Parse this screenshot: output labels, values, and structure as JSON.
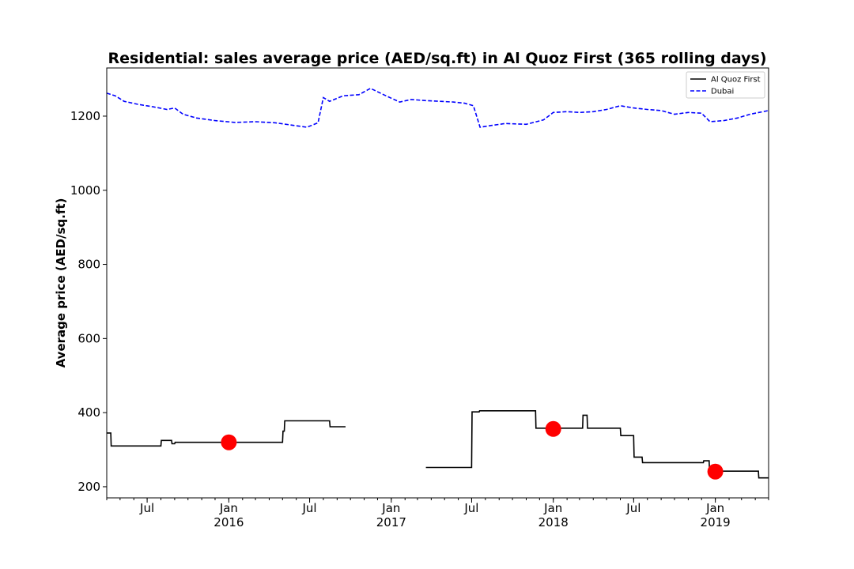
{
  "chart_data": {
    "type": "line",
    "title": "Residential: sales average price (AED/sq.ft) in Al Quoz First (365 rolling days)",
    "ylabel": "Average price (AED/sq.ft)",
    "xlabel": "",
    "xlim": [
      "2015-04-01",
      "2019-05-01"
    ],
    "ylim": [
      170,
      1330
    ],
    "yticks": [
      200,
      400,
      600,
      800,
      1000,
      1200
    ],
    "xticks": [
      {
        "date": "2015-07-01",
        "label": "Jul",
        "year": ""
      },
      {
        "date": "2016-01-01",
        "label": "Jan",
        "year": "2016"
      },
      {
        "date": "2016-07-01",
        "label": "Jul",
        "year": ""
      },
      {
        "date": "2017-01-01",
        "label": "Jan",
        "year": "2017"
      },
      {
        "date": "2017-07-01",
        "label": "Jul",
        "year": ""
      },
      {
        "date": "2018-01-01",
        "label": "Jan",
        "year": "2018"
      },
      {
        "date": "2018-07-01",
        "label": "Jul",
        "year": ""
      },
      {
        "date": "2019-01-01",
        "label": "Jan",
        "year": "2019"
      }
    ],
    "legend": {
      "placement": "top-right"
    },
    "grid": false,
    "series": [
      {
        "name": "Al Quoz First",
        "color": "#000000",
        "style": "solid",
        "segments": [
          [
            [
              "2015-04-01",
              345
            ],
            [
              "2015-04-10",
              345
            ],
            [
              "2015-04-11",
              310
            ],
            [
              "2015-08-01",
              310
            ],
            [
              "2015-08-02",
              325
            ],
            [
              "2015-08-25",
              325
            ],
            [
              "2015-08-26",
              316
            ],
            [
              "2015-09-01",
              316
            ],
            [
              "2015-09-02",
              320
            ],
            [
              "2016-05-01",
              320
            ],
            [
              "2016-05-02",
              350
            ],
            [
              "2016-05-05",
              350
            ],
            [
              "2016-05-06",
              378
            ],
            [
              "2016-08-15",
              378
            ],
            [
              "2016-08-16",
              362
            ],
            [
              "2016-09-20",
              362
            ]
          ],
          [
            [
              "2017-03-20",
              252
            ],
            [
              "2017-07-01",
              252
            ],
            [
              "2017-07-02",
              402
            ],
            [
              "2017-07-18",
              402
            ],
            [
              "2017-07-19",
              405
            ],
            [
              "2017-11-22",
              405
            ],
            [
              "2017-11-23",
              358
            ],
            [
              "2018-03-08",
              358
            ],
            [
              "2018-03-09",
              393
            ],
            [
              "2018-03-18",
              393
            ],
            [
              "2018-03-19",
              358
            ],
            [
              "2018-06-01",
              358
            ],
            [
              "2018-06-02",
              338
            ],
            [
              "2018-07-01",
              338
            ],
            [
              "2018-07-02",
              280
            ],
            [
              "2018-07-20",
              280
            ],
            [
              "2018-07-21",
              265
            ],
            [
              "2018-12-05",
              265
            ],
            [
              "2018-12-06",
              270
            ],
            [
              "2018-12-18",
              270
            ],
            [
              "2018-12-19",
              242
            ],
            [
              "2019-04-08",
              242
            ],
            [
              "2019-04-09",
              224
            ],
            [
              "2019-05-01",
              224
            ]
          ]
        ]
      },
      {
        "name": "Dubai",
        "color": "#0000ff",
        "style": "dashed",
        "segments": [
          [
            [
              "2015-04-01",
              1262
            ],
            [
              "2015-04-20",
              1255
            ],
            [
              "2015-05-10",
              1240
            ],
            [
              "2015-06-10",
              1232
            ],
            [
              "2015-07-15",
              1225
            ],
            [
              "2015-08-15",
              1218
            ],
            [
              "2015-09-01",
              1222
            ],
            [
              "2015-09-20",
              1205
            ],
            [
              "2015-10-20",
              1195
            ],
            [
              "2015-12-01",
              1188
            ],
            [
              "2016-01-15",
              1183
            ],
            [
              "2016-03-01",
              1185
            ],
            [
              "2016-04-15",
              1182
            ],
            [
              "2016-05-20",
              1176
            ],
            [
              "2016-06-25",
              1170
            ],
            [
              "2016-07-20",
              1182
            ],
            [
              "2016-08-01",
              1250
            ],
            [
              "2016-08-15",
              1240
            ],
            [
              "2016-09-15",
              1255
            ],
            [
              "2016-10-20",
              1258
            ],
            [
              "2016-11-15",
              1275
            ],
            [
              "2016-12-20",
              1255
            ],
            [
              "2017-01-20",
              1238
            ],
            [
              "2017-02-15",
              1245
            ],
            [
              "2017-03-20",
              1242
            ],
            [
              "2017-04-20",
              1240
            ],
            [
              "2017-05-20",
              1238
            ],
            [
              "2017-06-15",
              1235
            ],
            [
              "2017-07-05",
              1228
            ],
            [
              "2017-07-20",
              1170
            ],
            [
              "2017-08-15",
              1175
            ],
            [
              "2017-09-15",
              1180
            ],
            [
              "2017-11-01",
              1178
            ],
            [
              "2017-12-10",
              1190
            ],
            [
              "2018-01-01",
              1210
            ],
            [
              "2018-02-01",
              1212
            ],
            [
              "2018-03-01",
              1210
            ],
            [
              "2018-04-01",
              1212
            ],
            [
              "2018-05-01",
              1218
            ],
            [
              "2018-06-01",
              1228
            ],
            [
              "2018-07-01",
              1222
            ],
            [
              "2018-08-01",
              1218
            ],
            [
              "2018-09-01",
              1215
            ],
            [
              "2018-10-01",
              1205
            ],
            [
              "2018-11-01",
              1210
            ],
            [
              "2018-12-01",
              1208
            ],
            [
              "2018-12-20",
              1185
            ],
            [
              "2019-01-20",
              1188
            ],
            [
              "2019-02-20",
              1195
            ],
            [
              "2019-03-20",
              1205
            ],
            [
              "2019-05-01",
              1215
            ]
          ]
        ]
      }
    ],
    "markers": {
      "color": "#ff0000",
      "points": [
        {
          "date": "2016-01-01",
          "value": 320
        },
        {
          "date": "2018-01-01",
          "value": 356
        },
        {
          "date": "2019-01-01",
          "value": 241
        }
      ]
    }
  }
}
